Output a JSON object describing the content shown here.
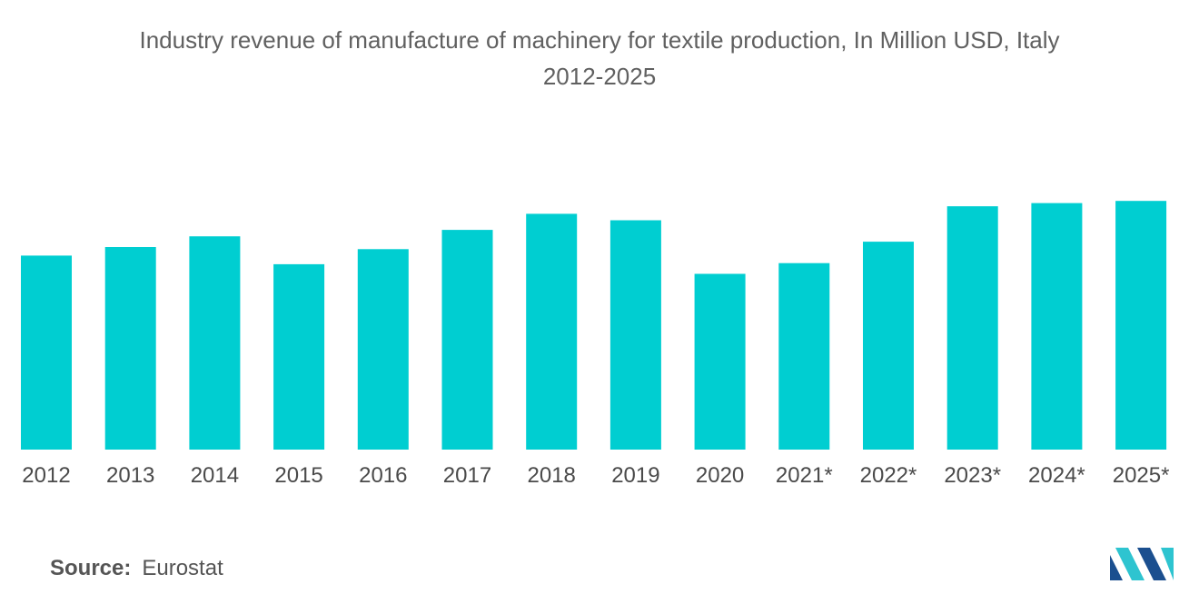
{
  "title_line1": "Industry revenue of manufacture of machinery for textile production, In Million USD, Italy",
  "title_line2": "2012-2025",
  "source_label": "Source:",
  "source_value": "Eurostat",
  "logo_icon": "mordor-intelligence-logo-icon",
  "colors": {
    "bar": "#00ced1",
    "logo_dark": "#1b4f8f",
    "logo_light": "#2ec4d0"
  },
  "chart_data": {
    "type": "bar",
    "categories": [
      "2012",
      "2013",
      "2014",
      "2015",
      "2016",
      "2017",
      "2018",
      "2019",
      "2020",
      "2021*",
      "2022*",
      "2023*",
      "2024*",
      "2025*"
    ],
    "values": [
      181,
      189,
      199,
      173,
      187,
      205,
      220,
      214,
      164,
      174,
      194,
      227,
      230,
      232
    ],
    "title": "Industry revenue of manufacture of machinery for textile production, In Million USD, Italy 2012-2025",
    "xlabel": "",
    "ylabel": "",
    "ylim": [
      0,
      250
    ],
    "grid": false,
    "legend": "none"
  }
}
